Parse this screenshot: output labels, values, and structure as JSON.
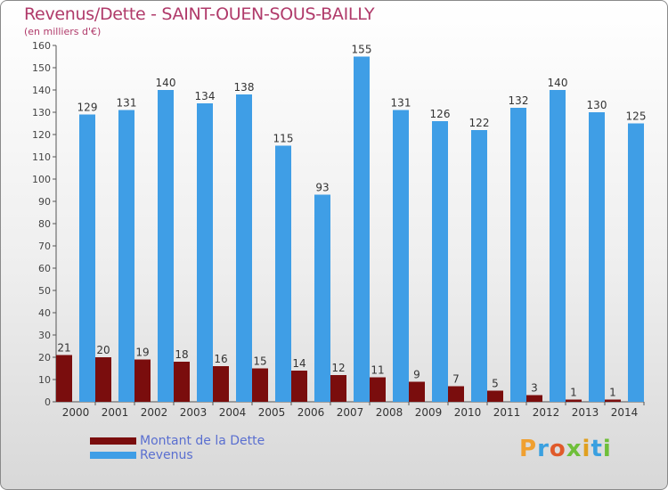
{
  "header": {
    "title": "Revenus/Dette - SAINT-OUEN-SOUS-BAILLY",
    "subtitle": "(en milliers d'€)"
  },
  "colors": {
    "dette": "#7a0d0d",
    "revenus": "#3f9ee6",
    "title": "#b03a6a",
    "legend_text": "#5a6fd0"
  },
  "legend": [
    {
      "label": "Montant de la Dette",
      "color": "#7a0d0d"
    },
    {
      "label": "Revenus",
      "color": "#3f9ee6"
    }
  ],
  "logo": {
    "text": "Proxiti"
  },
  "chart_data": {
    "type": "bar",
    "categories": [
      "2000",
      "2001",
      "2002",
      "2003",
      "2004",
      "2005",
      "2006",
      "2007",
      "2008",
      "2009",
      "2010",
      "2011",
      "2012",
      "2013",
      "2014"
    ],
    "series": [
      {
        "name": "Montant de la Dette",
        "values": [
          21,
          20,
          19,
          18,
          16,
          15,
          14,
          12,
          11,
          9,
          7,
          5,
          3,
          1,
          1
        ]
      },
      {
        "name": "Revenus",
        "values": [
          129,
          131,
          140,
          134,
          138,
          115,
          93,
          155,
          131,
          126,
          122,
          132,
          140,
          130,
          125
        ]
      }
    ],
    "ylim": [
      0,
      160
    ],
    "yticks": [
      0,
      10,
      20,
      30,
      40,
      50,
      60,
      70,
      80,
      90,
      100,
      110,
      120,
      130,
      140,
      150,
      160
    ],
    "grid": false,
    "legend_position": "bottom-left"
  }
}
